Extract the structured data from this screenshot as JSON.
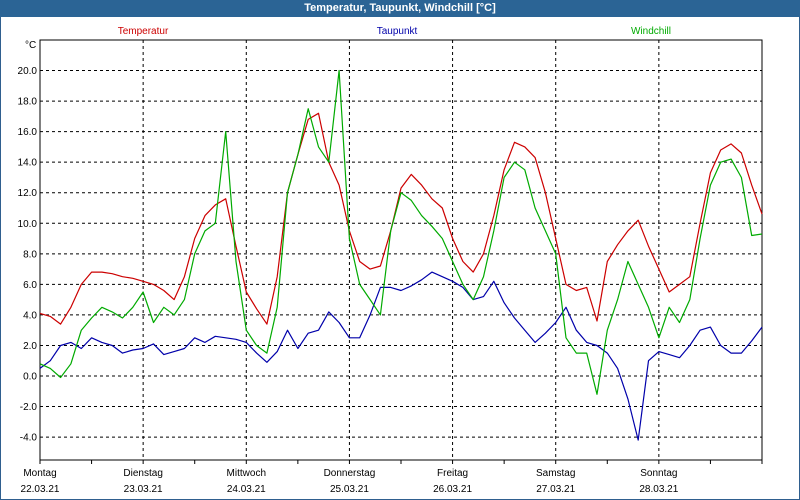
{
  "window": {
    "title": "Temperatur, Taupunkt, Windchill [°C]"
  },
  "chart_data": {
    "type": "line",
    "title": "Temperatur, Taupunkt, Windchill [°C]",
    "ylabel": "°C",
    "ylim": [
      -5.5,
      22
    ],
    "yticks": [
      -4.0,
      -2.0,
      0.0,
      2.0,
      4.0,
      6.0,
      8.0,
      10.0,
      12.0,
      14.0,
      16.0,
      18.0,
      20.0
    ],
    "ytick_labels": [
      "-4.0",
      "-2.0",
      "0.0",
      "2.0",
      "4.0",
      "6.0",
      "8.0",
      "10.0",
      "12.0",
      "14.0",
      "16.0",
      "18.0",
      "20.0"
    ],
    "xlim": [
      0,
      7
    ],
    "x_unit": "days since 22.03.21 00:00",
    "day_labels": [
      {
        "day": "Montag",
        "date": "22.03.21"
      },
      {
        "day": "Dienstag",
        "date": "23.03.21"
      },
      {
        "day": "Mittwoch",
        "date": "24.03.21"
      },
      {
        "day": "Donnerstag",
        "date": "25.03.21"
      },
      {
        "day": "Freitag",
        "date": "26.03.21"
      },
      {
        "day": "Samstag",
        "date": "27.03.21"
      },
      {
        "day": "Sonntag",
        "date": "28.03.21"
      }
    ],
    "grid": true,
    "legend_position": "top",
    "series": [
      {
        "name": "Temperatur",
        "color": "#cc0000",
        "x": [
          0,
          0.1,
          0.2,
          0.3,
          0.4,
          0.5,
          0.6,
          0.7,
          0.8,
          0.9,
          1.0,
          1.1,
          1.2,
          1.3,
          1.4,
          1.5,
          1.6,
          1.7,
          1.8,
          1.9,
          2.0,
          2.1,
          2.2,
          2.3,
          2.4,
          2.5,
          2.6,
          2.7,
          2.8,
          2.9,
          3.0,
          3.1,
          3.2,
          3.3,
          3.4,
          3.5,
          3.6,
          3.7,
          3.8,
          3.9,
          4.0,
          4.1,
          4.2,
          4.3,
          4.4,
          4.5,
          4.6,
          4.7,
          4.8,
          4.9,
          5.0,
          5.1,
          5.2,
          5.3,
          5.4,
          5.5,
          5.6,
          5.7,
          5.8,
          5.9,
          6.0,
          6.1,
          6.2,
          6.3,
          6.4,
          6.5,
          6.6,
          6.7,
          6.8,
          6.9,
          7.0
        ],
        "values": [
          4.1,
          3.9,
          3.4,
          4.5,
          6.0,
          6.8,
          6.8,
          6.7,
          6.5,
          6.4,
          6.2,
          6.0,
          5.6,
          5.0,
          6.5,
          9.0,
          10.5,
          11.2,
          11.6,
          8.5,
          5.5,
          4.4,
          3.4,
          6.5,
          12.0,
          14.5,
          16.8,
          17.2,
          14.0,
          12.5,
          9.5,
          7.5,
          7.0,
          7.2,
          9.5,
          12.3,
          13.2,
          12.5,
          11.6,
          11.0,
          9.0,
          7.5,
          6.8,
          8.0,
          10.5,
          13.5,
          15.3,
          15.0,
          14.3,
          12.0,
          9.0,
          6.0,
          5.6,
          5.8,
          3.6,
          7.5,
          8.6,
          9.5,
          10.2,
          8.5,
          7.0,
          5.5,
          6.0,
          6.5,
          10.0,
          13.3,
          14.8,
          15.2,
          14.6,
          12.5,
          10.6
        ]
      },
      {
        "name": "Taupunkt",
        "color": "#0000aa",
        "x": [
          0,
          0.1,
          0.2,
          0.3,
          0.4,
          0.5,
          0.6,
          0.7,
          0.8,
          0.9,
          1.0,
          1.1,
          1.2,
          1.3,
          1.4,
          1.5,
          1.6,
          1.7,
          1.8,
          1.9,
          2.0,
          2.1,
          2.2,
          2.3,
          2.4,
          2.5,
          2.6,
          2.7,
          2.8,
          2.9,
          3.0,
          3.1,
          3.2,
          3.3,
          3.4,
          3.5,
          3.6,
          3.7,
          3.8,
          3.9,
          4.0,
          4.1,
          4.2,
          4.3,
          4.4,
          4.5,
          4.6,
          4.7,
          4.8,
          4.9,
          5.0,
          5.1,
          5.2,
          5.3,
          5.4,
          5.5,
          5.6,
          5.7,
          5.8,
          5.9,
          6.0,
          6.1,
          6.2,
          6.3,
          6.4,
          6.5,
          6.6,
          6.7,
          6.8,
          6.9,
          7.0
        ],
        "values": [
          0.5,
          1.0,
          2.0,
          2.2,
          1.8,
          2.5,
          2.2,
          2.0,
          1.5,
          1.7,
          1.8,
          2.1,
          1.4,
          1.6,
          1.8,
          2.5,
          2.2,
          2.6,
          2.5,
          2.4,
          2.2,
          1.5,
          0.9,
          1.6,
          3.0,
          1.8,
          2.8,
          3.0,
          4.2,
          3.5,
          2.5,
          2.5,
          4.0,
          5.8,
          5.8,
          5.6,
          5.9,
          6.3,
          6.8,
          6.5,
          6.2,
          5.8,
          5.0,
          5.2,
          6.2,
          4.8,
          3.8,
          3.0,
          2.2,
          2.8,
          3.5,
          4.5,
          3.0,
          2.2,
          2.0,
          1.5,
          0.5,
          -1.5,
          -4.2,
          1.0,
          1.6,
          1.4,
          1.2,
          2.0,
          3.0,
          3.2,
          2.0,
          1.5,
          1.5,
          2.3,
          3.2
        ]
      },
      {
        "name": "Windchill",
        "color": "#00aa00",
        "x": [
          0,
          0.1,
          0.2,
          0.3,
          0.4,
          0.5,
          0.6,
          0.7,
          0.8,
          0.9,
          1.0,
          1.1,
          1.2,
          1.3,
          1.4,
          1.5,
          1.6,
          1.7,
          1.8,
          1.9,
          2.0,
          2.1,
          2.2,
          2.3,
          2.4,
          2.5,
          2.6,
          2.7,
          2.8,
          2.9,
          3.0,
          3.1,
          3.2,
          3.3,
          3.4,
          3.5,
          3.6,
          3.7,
          3.8,
          3.9,
          4.0,
          4.1,
          4.2,
          4.3,
          4.4,
          4.5,
          4.6,
          4.7,
          4.8,
          4.9,
          5.0,
          5.1,
          5.2,
          5.3,
          5.4,
          5.5,
          5.6,
          5.7,
          5.8,
          5.9,
          6.0,
          6.1,
          6.2,
          6.3,
          6.4,
          6.5,
          6.6,
          6.7,
          6.8,
          6.9,
          7.0
        ],
        "values": [
          0.8,
          0.5,
          -0.1,
          0.8,
          3.0,
          3.8,
          4.5,
          4.2,
          3.8,
          4.5,
          5.5,
          3.5,
          4.5,
          4.0,
          5.0,
          8.0,
          9.5,
          10.0,
          16.0,
          7.5,
          3.0,
          2.0,
          1.5,
          4.5,
          12.0,
          14.5,
          17.5,
          15.0,
          14.0,
          20.0,
          9.0,
          6.0,
          5.0,
          4.0,
          9.5,
          12.0,
          11.5,
          10.5,
          9.8,
          9.0,
          7.5,
          6.0,
          5.0,
          6.5,
          9.5,
          13.0,
          14.0,
          13.5,
          11.0,
          9.5,
          8.0,
          2.5,
          1.5,
          1.5,
          -1.2,
          3.0,
          5.0,
          7.5,
          6.0,
          4.5,
          2.5,
          4.5,
          3.5,
          5.0,
          9.0,
          12.5,
          14.0,
          14.2,
          13.0,
          9.2,
          9.3
        ]
      }
    ]
  }
}
